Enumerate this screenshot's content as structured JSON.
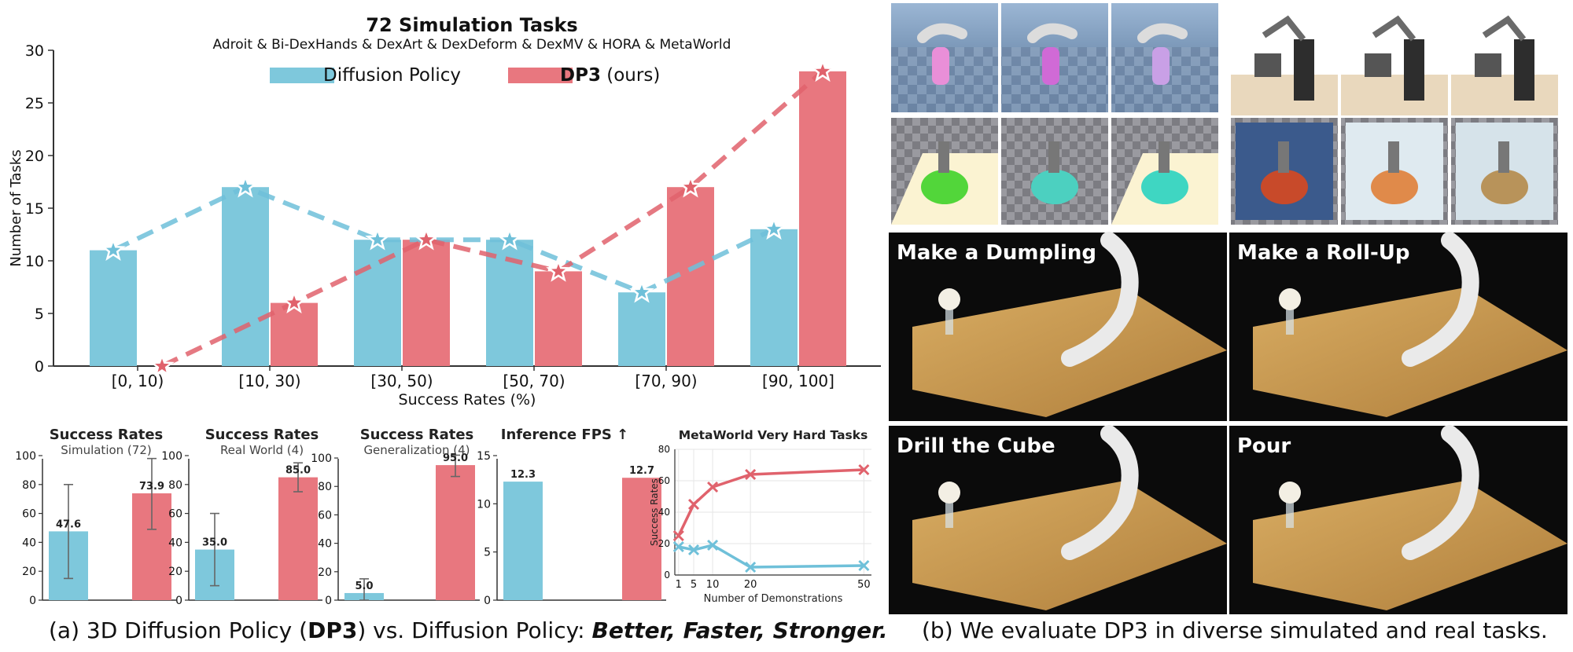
{
  "colors": {
    "dp": "#7ec8dc",
    "dp3": "#e8777f",
    "dp_line": "#6fc0d9",
    "dp3_line": "#e0626c"
  },
  "main_chart": {
    "type": "bar",
    "title": "72 Simulation Tasks",
    "subtitle": "Adroit & Bi-DexHands & DexArt & DexDeform & DexMV & HORA & MetaWorld",
    "xlabel": "Success Rates (%)",
    "ylabel": "Number of Tasks",
    "ylim": [
      0,
      30
    ],
    "yticks": [
      0,
      5,
      10,
      15,
      20,
      25,
      30
    ],
    "categories": [
      "[0, 10)",
      "[10, 30)",
      "[30, 50)",
      "[50, 70)",
      "[70, 90)",
      "[90, 100]"
    ],
    "series": [
      {
        "name": "Diffusion Policy",
        "values": [
          11,
          17,
          12,
          12,
          7,
          13
        ]
      },
      {
        "name": "DP3",
        "values": [
          0,
          6,
          12,
          9,
          17,
          28
        ]
      }
    ],
    "legend": {
      "dp": "Diffusion Policy",
      "dp3_bold": "DP3",
      "dp3_rest": "(ours)"
    },
    "legend_position": "top"
  },
  "small_charts": [
    {
      "type": "bar",
      "title": "Success Rates",
      "subtitle": "Simulation (72)",
      "ylim": [
        0,
        100
      ],
      "yticks": [
        0,
        20,
        40,
        60,
        80,
        100
      ],
      "values": [
        47.6,
        73.9
      ],
      "labels": [
        "47.6",
        "73.9"
      ],
      "errors": [
        [
          15,
          80
        ],
        [
          49,
          98
        ]
      ]
    },
    {
      "type": "bar",
      "title": "Success Rates",
      "subtitle": "Real World (4)",
      "ylim": [
        0,
        100
      ],
      "yticks": [
        0,
        20,
        40,
        60,
        80,
        100
      ],
      "values": [
        35.0,
        85.0
      ],
      "labels": [
        "35.0",
        "85.0"
      ],
      "errors": [
        [
          10,
          60
        ],
        [
          75,
          95
        ]
      ]
    },
    {
      "type": "bar",
      "title": "Success Rates",
      "subtitle": "Generalization (4)",
      "ylim": [
        0,
        105
      ],
      "yticks": [
        0,
        20,
        40,
        60,
        80,
        100
      ],
      "values": [
        5.0,
        95.0
      ],
      "labels": [
        "5.0",
        "95.0"
      ],
      "errors": [
        [
          0,
          15
        ],
        [
          87,
          102
        ]
      ]
    },
    {
      "type": "bar",
      "title": "Inference FPS ↑",
      "subtitle": "",
      "ylim": [
        0,
        15
      ],
      "yticks": [
        0,
        5,
        10,
        15
      ],
      "values": [
        12.3,
        12.7
      ],
      "labels": [
        "12.3",
        "12.7"
      ],
      "errors": []
    }
  ],
  "line_chart": {
    "type": "line",
    "title": "MetaWorld Very Hard Tasks",
    "xlabel": "Number of Demonstrations",
    "ylabel": "Success Rates",
    "ylim": [
      0,
      80
    ],
    "yticks": [
      0,
      20,
      40,
      60,
      80
    ],
    "xticks": [
      1,
      5,
      10,
      20,
      50
    ],
    "xlim": [
      0,
      52
    ],
    "series": [
      {
        "name": "DP3",
        "x": [
          1,
          5,
          10,
          20,
          50
        ],
        "y": [
          25,
          45,
          56,
          64,
          67
        ]
      },
      {
        "name": "Diffusion Policy",
        "x": [
          1,
          5,
          10,
          20,
          50
        ],
        "y": [
          18,
          16,
          19,
          5,
          6
        ]
      }
    ]
  },
  "captions": {
    "left_a": "(a) 3D Diffusion Policy (",
    "left_b": "DP3",
    "left_c": ") vs. Diffusion Policy: ",
    "left_d": "Better, Faster, Stronger.",
    "right": "(b) We evaluate DP3 in diverse simulated and real tasks."
  },
  "real_tasks": [
    "Make a Dumpling",
    "Make a Roll-Up",
    "Drill the Cube",
    "Pour"
  ]
}
